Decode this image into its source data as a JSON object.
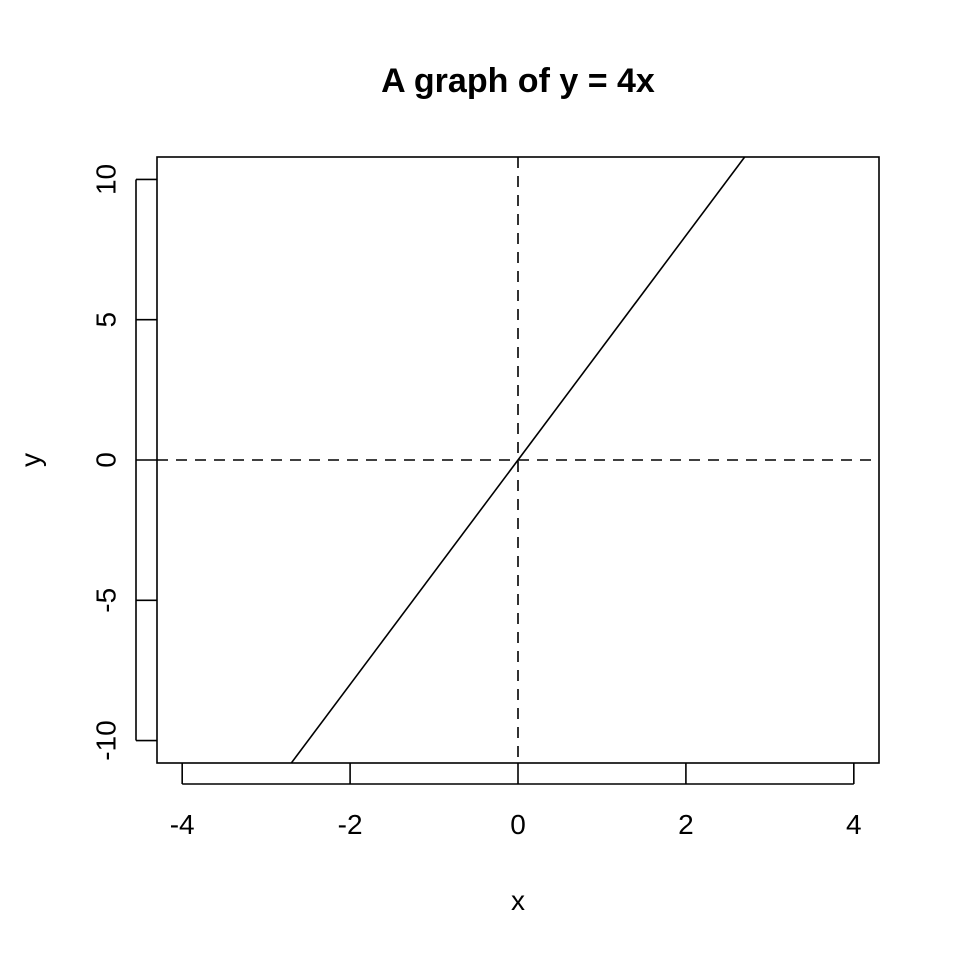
{
  "chart_data": {
    "type": "line",
    "title": "A graph of y = 4x",
    "xlabel": "x",
    "ylabel": "y",
    "xlim": [
      -4.3,
      4.3
    ],
    "ylim": [
      -10.8,
      10.8
    ],
    "x_ticks": [
      -4,
      -2,
      0,
      2,
      4
    ],
    "y_ticks": [
      -10,
      -5,
      0,
      5,
      10
    ],
    "x_tick_labels": [
      "-4",
      "-2",
      "0",
      "2",
      "4"
    ],
    "y_tick_labels": [
      "-10",
      "-5",
      "0",
      "5",
      "10"
    ],
    "series": [
      {
        "x": [
          -2.7,
          2.7
        ],
        "y": [
          -10.8,
          10.8
        ],
        "color": "#000000",
        "line_style": "solid"
      }
    ],
    "reference_lines": [
      {
        "orientation": "vertical",
        "value": 0,
        "line_style": "dashed",
        "color": "#000000"
      },
      {
        "orientation": "horizontal",
        "value": 0,
        "line_style": "dashed",
        "color": "#000000"
      }
    ],
    "grid": false,
    "legend": "none",
    "colors": {
      "background": "#ffffff",
      "ink": "#000000"
    }
  }
}
